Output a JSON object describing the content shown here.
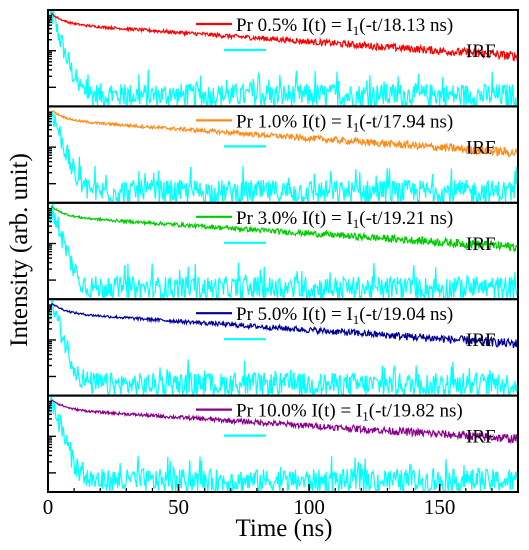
{
  "chart_data": {
    "type": "line",
    "xlabel": "Time (ns)",
    "ylabel": "Intensity (arb. unit)",
    "xlim": [
      0,
      180
    ],
    "x_ticks": [
      "0",
      "50",
      "100",
      "150"
    ],
    "x_tick_values": [
      0,
      50,
      100,
      150
    ],
    "y_scale": "log",
    "y_tick_labels_shown": false,
    "grid": false,
    "legend_position": "top-right",
    "panels": [
      {
        "sample_label": "Pr 0.5%",
        "fit_label": "I(t) = I",
        "fit_subscript": "1",
        "fit_tail": "(-t/18.13 ns)",
        "lifetime_ns": 18.13,
        "color": "#ff0000",
        "irf_label": "IRF",
        "irf_color": "#00ffff"
      },
      {
        "sample_label": "Pr 1.0%",
        "fit_label": "I(t) = I",
        "fit_subscript": "1",
        "fit_tail": "(-t/17.94 ns)",
        "lifetime_ns": 17.94,
        "color": "#ff8c1a",
        "irf_label": "IRF",
        "irf_color": "#00ffff"
      },
      {
        "sample_label": "Pr 3.0%",
        "fit_label": "I(t) = I",
        "fit_subscript": "1",
        "fit_tail": "(-t/19.21 ns)",
        "lifetime_ns": 19.21,
        "color": "#00cc00",
        "irf_label": "IRF",
        "irf_color": "#00ffff"
      },
      {
        "sample_label": "Pr 5.0%",
        "fit_label": "I(t) = I",
        "fit_subscript": "1",
        "fit_tail": "(-t/19.04 ns)",
        "lifetime_ns": 19.04,
        "color": "#000099",
        "irf_label": "IRF",
        "irf_color": "#00ffff"
      },
      {
        "sample_label": "Pr 10.0%",
        "fit_label": "I(t) = I",
        "fit_subscript": "1",
        "fit_tail": "(-t/19.82 ns)",
        "lifetime_ns": 19.82,
        "color": "#8b008b",
        "irf_label": "IRF",
        "irf_color": "#00ffff"
      }
    ]
  }
}
